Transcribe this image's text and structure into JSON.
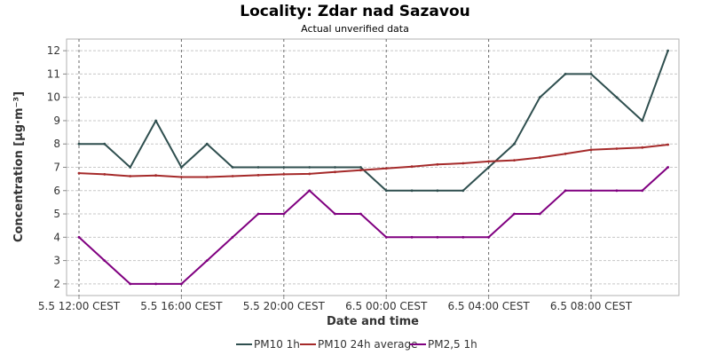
{
  "chart_data": {
    "type": "line",
    "title": "Locality: Zdar nad Sazavou",
    "subtitle": "Actual unverified data",
    "xlabel": "Date and time",
    "ylabel": "Concentration [µg·m⁻³]",
    "ylim": [
      1.5,
      12.5
    ],
    "yticks": [
      2,
      3,
      4,
      5,
      6,
      7,
      8,
      9,
      10,
      11,
      12
    ],
    "x_tick_labels": [
      "5.5 12:00 CEST",
      "5.5 16:00 CEST",
      "5.5 20:00 CEST",
      "6.5 00:00 CEST",
      "6.5 04:00 CEST",
      "6.5 08:00 CEST"
    ],
    "x_tick_hours": [
      0,
      4,
      8,
      12,
      16,
      20
    ],
    "x_hours": [
      0,
      1,
      2,
      3,
      4,
      5,
      6,
      7,
      8,
      9,
      10,
      11,
      12,
      13,
      14,
      15,
      16,
      17,
      18,
      19,
      20,
      21,
      22,
      23
    ],
    "grid": true,
    "legend_position": "bottom",
    "series": [
      {
        "name": "PM10 1h",
        "color": "#2f4f4f",
        "values": [
          8,
          8,
          7,
          9,
          7,
          8,
          7,
          7,
          7,
          7,
          7,
          7,
          6,
          6,
          6,
          6,
          7,
          8,
          10,
          11,
          11,
          10,
          9,
          12
        ]
      },
      {
        "name": "PM10 24h average",
        "color": "#a52a2a",
        "values": [
          6.75,
          6.7,
          6.62,
          6.65,
          6.58,
          6.58,
          6.62,
          6.66,
          6.7,
          6.72,
          6.8,
          6.88,
          6.95,
          7.03,
          7.12,
          7.17,
          7.25,
          7.3,
          7.42,
          7.58,
          7.75,
          7.8,
          7.85,
          7.97
        ]
      },
      {
        "name": "PM2,5 1h",
        "color": "#800080",
        "values": [
          4,
          3,
          2,
          2,
          2,
          3,
          4,
          5,
          5,
          6,
          5,
          5,
          4,
          4,
          4,
          4,
          4,
          5,
          5,
          6,
          6,
          6,
          6,
          7
        ]
      }
    ]
  }
}
